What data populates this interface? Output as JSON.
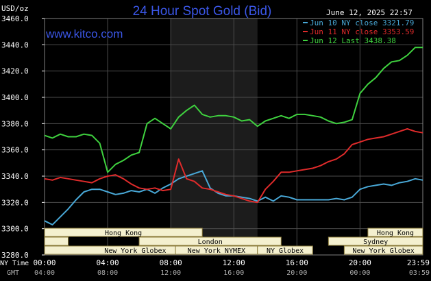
{
  "title": "24 Hour Spot Gold (Bid)",
  "site": "www.kitco.com",
  "unit_label": "USD/oz",
  "timestamp": "June 12, 2025 22:57",
  "colors": {
    "background": "#000000",
    "grid": "#4d4d4d",
    "axis_text": "#ffffff",
    "title": "#3b57e8",
    "site": "#3b57e8",
    "session_fill": "#f4f0cf",
    "session_stroke": "#8a7a3a",
    "shade": "#1c1c1c",
    "jun10": "#49a9d8",
    "jun11": "#e02b2b",
    "jun12": "#3fd23f"
  },
  "sessions": [
    {
      "label": "Hong Kong",
      "start": 0.0,
      "end": 10.0,
      "row": 0
    },
    {
      "label": "",
      "start": 0.0,
      "end": 1.5,
      "row": 1
    },
    {
      "label": "London",
      "start": 6.0,
      "end": 15.0,
      "row": 1
    },
    {
      "label": "New York Globex",
      "start": 0.0,
      "end": 11.5,
      "row": 2
    },
    {
      "label": "New York NYMEX",
      "start": 8.3,
      "end": 13.5,
      "row": 2
    },
    {
      "label": "NY Globex",
      "start": 13.5,
      "end": 17.0,
      "row": 2
    },
    {
      "label": "Hong Kong",
      "start": 20.5,
      "end": 23.98,
      "row": 0
    },
    {
      "label": "Sydney",
      "start": 18.0,
      "end": 23.98,
      "row": 1
    },
    {
      "label": "New York Globex",
      "start": 19.0,
      "end": 23.98,
      "row": 2
    }
  ],
  "time_axis": {
    "ny_label": "NY Time",
    "gmt_label": "GMT",
    "ny_ticks": [
      "00:00",
      "04:00",
      "08:00",
      "12:00",
      "16:00",
      "20:00",
      "23:59"
    ],
    "gmt_ticks": [
      "04:00",
      "08:00",
      "12:00",
      "16:00",
      "20:00",
      "00:00",
      "03:59"
    ]
  },
  "chart_data": {
    "type": "line",
    "title": "24 Hour Spot Gold (Bid)",
    "ylabel": "USD/oz",
    "xlabel": "NY Time",
    "xlim": [
      0,
      23.98
    ],
    "ylim": [
      3280,
      3460
    ],
    "yticks": [
      "3280.0",
      "3300.0",
      "3320.0",
      "3340.0",
      "3360.0",
      "3380.0",
      "3400.0",
      "3420.0",
      "3440.0",
      "3460.0"
    ],
    "shaded_hours": [
      8.0,
      13.5
    ],
    "grid": true,
    "legend_position": "top-right",
    "series": [
      {
        "name": "Jun 10 NY close 3321.79",
        "color_key": "jun10",
        "x": [
          0,
          0.5,
          1.0,
          1.5,
          2.0,
          2.5,
          3.0,
          3.5,
          4.0,
          4.5,
          5.0,
          5.5,
          6.0,
          6.5,
          7.0,
          7.5,
          8.0,
          8.5,
          9.0,
          9.5,
          10.0,
          10.5,
          11.0,
          11.5,
          12.0,
          12.5,
          13.0,
          13.5,
          14.0,
          14.5,
          15.0,
          15.5,
          16.0,
          16.5,
          17.0,
          17.5,
          18.0,
          18.5,
          19.0,
          19.5,
          20.0,
          20.5,
          21.0,
          21.5,
          22.0,
          22.5,
          23.0,
          23.5,
          23.98
        ],
        "y": [
          3306,
          3303,
          3309,
          3315,
          3322,
          3328,
          3330,
          3330,
          3328,
          3326,
          3327,
          3329,
          3328,
          3330,
          3327,
          3331,
          3334,
          3338,
          3340,
          3342,
          3344,
          3331,
          3327,
          3325,
          3325,
          3324,
          3323,
          3321,
          3324,
          3321,
          3325,
          3324,
          3322,
          3322,
          3322,
          3322,
          3322,
          3323,
          3322,
          3324,
          3330,
          3332,
          3333,
          3334,
          3333,
          3335,
          3336,
          3338,
          3337
        ]
      },
      {
        "name": "Jun 11 NY close 3353.59",
        "color_key": "jun11",
        "x": [
          0,
          0.5,
          1.0,
          1.5,
          2.0,
          2.5,
          3.0,
          3.5,
          4.0,
          4.5,
          5.0,
          5.5,
          6.0,
          6.5,
          7.0,
          7.5,
          8.0,
          8.5,
          9.0,
          9.5,
          10.0,
          10.5,
          11.0,
          11.5,
          12.0,
          12.5,
          13.0,
          13.5,
          14.0,
          14.5,
          15.0,
          15.5,
          16.0,
          16.5,
          17.0,
          17.5,
          18.0,
          18.5,
          19.0,
          19.5,
          20.0,
          20.5,
          21.0,
          21.5,
          22.0,
          22.5,
          23.0,
          23.5,
          23.98
        ],
        "y": [
          3338,
          3337,
          3339,
          3338,
          3337,
          3336,
          3335,
          3338,
          3340,
          3341,
          3338,
          3334,
          3331,
          3330,
          3331,
          3329,
          3330,
          3353,
          3338,
          3336,
          3331,
          3330,
          3328,
          3326,
          3325,
          3323,
          3321,
          3320,
          3330,
          3336,
          3343,
          3343,
          3344,
          3345,
          3346,
          3348,
          3351,
          3353,
          3357,
          3364,
          3366,
          3368,
          3369,
          3370,
          3372,
          3374,
          3376,
          3374,
          3373
        ]
      },
      {
        "name": "Jun 12 Last 3438.38",
        "color_key": "jun12",
        "x": [
          0,
          0.5,
          1.0,
          1.5,
          2.0,
          2.5,
          3.0,
          3.5,
          4.0,
          4.5,
          5.0,
          5.5,
          6.0,
          6.5,
          7.0,
          7.5,
          8.0,
          8.5,
          9.0,
          9.5,
          10.0,
          10.5,
          11.0,
          11.5,
          12.0,
          12.5,
          13.0,
          13.5,
          14.0,
          14.5,
          15.0,
          15.5,
          16.0,
          16.5,
          17.0,
          17.5,
          18.0,
          18.5,
          19.0,
          19.5,
          20.0,
          20.5,
          21.0,
          21.5,
          22.0,
          22.5,
          23.0,
          23.5,
          23.98
        ],
        "y": [
          3371,
          3369,
          3372,
          3370,
          3370,
          3372,
          3371,
          3365,
          3343,
          3349,
          3352,
          3356,
          3358,
          3380,
          3384,
          3380,
          3376,
          3385,
          3390,
          3394,
          3387,
          3385,
          3386,
          3386,
          3385,
          3382,
          3383,
          3378,
          3382,
          3384,
          3386,
          3384,
          3387,
          3387,
          3386,
          3385,
          3382,
          3380,
          3381,
          3383,
          3403,
          3410,
          3415,
          3422,
          3427,
          3428,
          3432,
          3438,
          3438
        ]
      }
    ]
  }
}
